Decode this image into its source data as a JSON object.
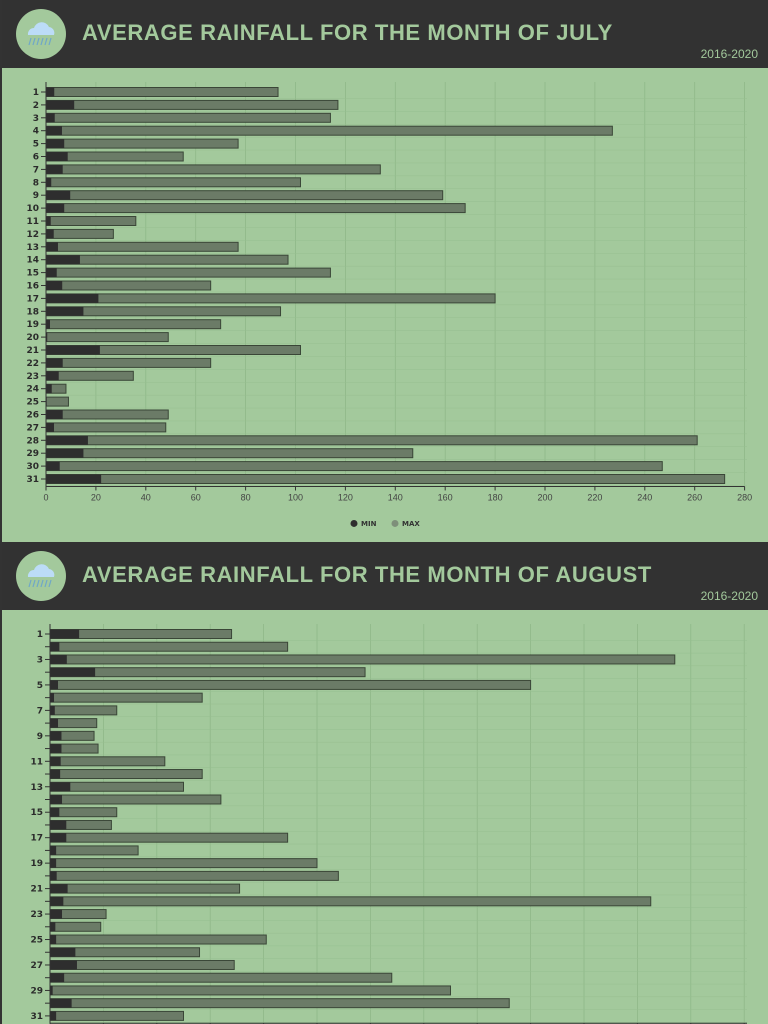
{
  "colors": {
    "header_bg": "#323232",
    "panel_bg": "#a3c99c",
    "title": "#a3c99c",
    "min": "#2e2e2e",
    "max": "#6b7b67",
    "bar_stroke": "#3a4637"
  },
  "icon": "rain-cloud-icon",
  "chart_data": [
    {
      "type": "bar",
      "orientation": "horizontal",
      "title": "AVERAGE RAINFALL FOR THE MONTH OF JULY",
      "subtitle": "2016-2020",
      "categories": [
        "1",
        "2",
        "3",
        "4",
        "5",
        "6",
        "7",
        "8",
        "9",
        "10",
        "11",
        "12",
        "13",
        "14",
        "15",
        "16",
        "17",
        "18",
        "19",
        "20",
        "21",
        "22",
        "23",
        "24",
        "25",
        "26",
        "27",
        "28",
        "29",
        "30",
        "31"
      ],
      "series": [
        {
          "name": "MIN",
          "values": [
            3.3,
            11.3,
            3.5,
            6.4,
            7.3,
            8.7,
            6.7,
            2.1,
            9.7,
            7.3,
            1.9,
            3.1,
            4.8,
            13.6,
            4.3,
            6.5,
            21,
            15,
            1.6,
            0.5,
            21.6,
            6.7,
            5.1,
            2.3,
            0.3,
            6.7,
            3.2,
            16.8,
            15,
            5.5,
            22.1
          ]
        },
        {
          "name": "MAX",
          "values": [
            93,
            117,
            114,
            227,
            77,
            55,
            134,
            102,
            159,
            168,
            36,
            27,
            77,
            97,
            114,
            66,
            180,
            94,
            70,
            49,
            102,
            66,
            35,
            8,
            9,
            49,
            48,
            261,
            147,
            247,
            272
          ]
        }
      ],
      "xlim": [
        0,
        280
      ],
      "xticks": [
        "0",
        "20",
        "40",
        "60",
        "80",
        "100",
        "120",
        "140",
        "160",
        "180",
        "200",
        "220",
        "240",
        "260",
        "280"
      ],
      "grid": true,
      "legend": "bottom-center"
    },
    {
      "type": "bar",
      "orientation": "horizontal",
      "title": "AVERAGE RAINFALL FOR THE MONTH OF AUGUST",
      "subtitle": "2016-2020",
      "categories": [
        "1",
        "",
        "3",
        "",
        "5",
        "",
        "7",
        "",
        "9",
        "",
        "11",
        "",
        "13",
        "",
        "15",
        "",
        "17",
        "",
        "19",
        "",
        "21",
        "",
        "23",
        "",
        "25",
        "",
        "27",
        "",
        "29",
        "",
        "31"
      ],
      "series": [
        {
          "name": "MIN",
          "values": [
            10.9,
            3.5,
            6.3,
            16.9,
            3,
            1.5,
            1.8,
            3,
            4.3,
            4.3,
            4,
            3.8,
            7.6,
            4.5,
            3.5,
            6.1,
            6.1,
            2.3,
            2.3,
            2.5,
            6.6,
            5,
            4.5,
            2,
            2.3,
            9.5,
            10.1,
            5.3,
            1,
            8.1,
            2.3
          ]
        },
        {
          "name": "MAX",
          "values": [
            68,
            89,
            234,
            118,
            180,
            57,
            25,
            17.5,
            16.5,
            18,
            43,
            57,
            50,
            64,
            25,
            23,
            89,
            33,
            100,
            108,
            71,
            225,
            21,
            19,
            81,
            56,
            69,
            128,
            150,
            172,
            50
          ]
        }
      ],
      "grid": true
    }
  ]
}
